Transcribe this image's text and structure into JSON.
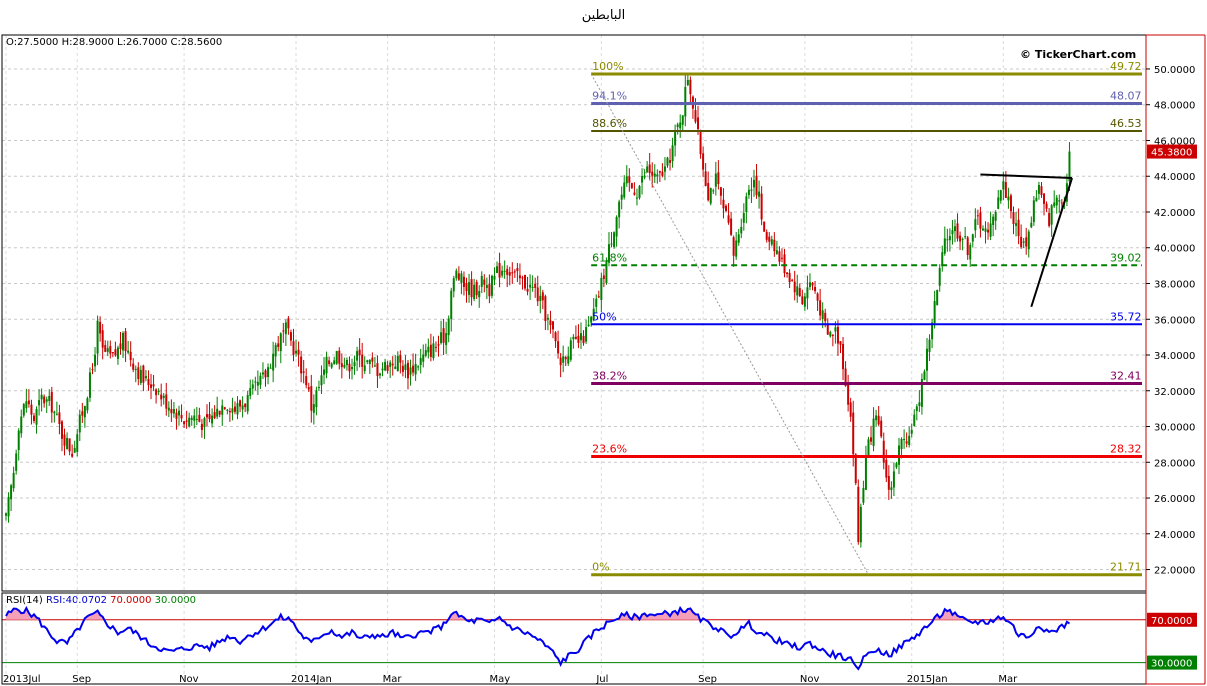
{
  "title": "البابطين",
  "ohlc": {
    "open": "O:27.5000",
    "high": "H:28.9000",
    "low": "L:26.7000",
    "close": "C:28.5600"
  },
  "watermark": "© TickerChart.com",
  "colors": {
    "up": "#008000",
    "down": "#cc0000",
    "panel_border": "#000000",
    "axis_border": "#cc0000"
  },
  "chart_data": [
    {
      "type": "candlestick",
      "title": "البابطين",
      "ylim": [
        20.8,
        51.9
      ],
      "y_ticks": [
        "22.0000",
        "24.0000",
        "26.0000",
        "28.0000",
        "30.0000",
        "32.0000",
        "34.0000",
        "36.0000",
        "38.0000",
        "40.0000",
        "42.0000",
        "44.0000",
        "46.0000",
        "48.0000",
        "50.0000"
      ],
      "x_labels": [
        "2013Jul",
        "Sep",
        "Nov",
        "2014Jan",
        "Mar",
        "May",
        "Jul",
        "Sep",
        "Nov",
        "2015Jan",
        "Mar"
      ],
      "x_label_day": [
        0,
        28,
        70,
        114,
        150,
        192,
        234,
        274,
        314,
        356,
        392
      ],
      "grid": true,
      "last_price": "45.3800",
      "keypoints": [
        [
          0,
          24.8
        ],
        [
          3,
          27.5
        ],
        [
          5,
          30.2
        ],
        [
          8,
          31.5
        ],
        [
          11,
          30.4
        ],
        [
          14,
          31.6
        ],
        [
          18,
          31.2
        ],
        [
          22,
          29.6
        ],
        [
          26,
          28.6
        ],
        [
          30,
          30.8
        ],
        [
          34,
          33.2
        ],
        [
          36,
          35.6
        ],
        [
          38,
          34.2
        ],
        [
          42,
          33.8
        ],
        [
          46,
          34.8
        ],
        [
          50,
          33.6
        ],
        [
          54,
          32.6
        ],
        [
          58,
          32.4
        ],
        [
          62,
          31.5
        ],
        [
          66,
          31.0
        ],
        [
          70,
          30.4
        ],
        [
          74,
          30.6
        ],
        [
          78,
          30.1
        ],
        [
          82,
          30.7
        ],
        [
          86,
          31.4
        ],
        [
          90,
          31.0
        ],
        [
          94,
          31.4
        ],
        [
          98,
          32.1
        ],
        [
          102,
          32.9
        ],
        [
          106,
          34.5
        ],
        [
          110,
          35.4
        ],
        [
          114,
          34.1
        ],
        [
          118,
          32.6
        ],
        [
          120,
          31.1
        ],
        [
          123,
          32.2
        ],
        [
          126,
          33.5
        ],
        [
          130,
          34.1
        ],
        [
          134,
          33.4
        ],
        [
          138,
          33.9
        ],
        [
          142,
          33.6
        ],
        [
          146,
          33.2
        ],
        [
          150,
          33.5
        ],
        [
          154,
          33.7
        ],
        [
          158,
          33.1
        ],
        [
          162,
          33.6
        ],
        [
          166,
          34.2
        ],
        [
          170,
          34.6
        ],
        [
          173,
          35.3
        ],
        [
          175,
          37.6
        ],
        [
          177,
          38.6
        ],
        [
          180,
          37.9
        ],
        [
          184,
          37.6
        ],
        [
          188,
          38.2
        ],
        [
          190,
          37.7
        ],
        [
          193,
          38.6
        ],
        [
          196,
          39.0
        ],
        [
          200,
          38.4
        ],
        [
          204,
          38.0
        ],
        [
          208,
          37.6
        ],
        [
          212,
          36.3
        ],
        [
          215,
          35.1
        ],
        [
          218,
          33.6
        ],
        [
          220,
          34.2
        ],
        [
          223,
          34.6
        ],
        [
          226,
          34.8
        ],
        [
          229,
          35.5
        ],
        [
          232,
          36.8
        ],
        [
          235,
          38.6
        ],
        [
          238,
          40.6
        ],
        [
          241,
          42.6
        ],
        [
          244,
          43.6
        ],
        [
          248,
          43.2
        ],
        [
          252,
          44.4
        ],
        [
          256,
          43.8
        ],
        [
          260,
          44.6
        ],
        [
          263,
          46.2
        ],
        [
          266,
          47.8
        ],
        [
          268,
          49.6
        ],
        [
          270,
          48.1
        ],
        [
          272,
          46.2
        ],
        [
          274,
          44.6
        ],
        [
          276,
          43.1
        ],
        [
          279,
          43.8
        ],
        [
          282,
          42.1
        ],
        [
          284,
          41.2
        ],
        [
          286,
          39.6
        ],
        [
          289,
          41.6
        ],
        [
          292,
          43.4
        ],
        [
          294,
          43.9
        ],
        [
          296,
          42.8
        ],
        [
          298,
          40.6
        ],
        [
          301,
          40.6
        ],
        [
          304,
          39.4
        ],
        [
          307,
          38.7
        ],
        [
          310,
          37.9
        ],
        [
          313,
          37.1
        ],
        [
          316,
          38.1
        ],
        [
          318,
          37.6
        ],
        [
          320,
          36.6
        ],
        [
          323,
          35.1
        ],
        [
          326,
          35.4
        ],
        [
          328,
          34.6
        ],
        [
          330,
          32.6
        ],
        [
          332,
          30.6
        ],
        [
          334,
          26.6
        ],
        [
          335,
          23.6
        ],
        [
          336,
          25.6
        ],
        [
          338,
          28.1
        ],
        [
          340,
          29.6
        ],
        [
          342,
          30.4
        ],
        [
          344,
          29.1
        ],
        [
          346,
          27.1
        ],
        [
          348,
          26.6
        ],
        [
          350,
          28.2
        ],
        [
          352,
          29.1
        ],
        [
          354,
          28.6
        ],
        [
          356,
          30.2
        ],
        [
          358,
          30.8
        ],
        [
          360,
          32.6
        ],
        [
          362,
          34.1
        ],
        [
          364,
          36.0
        ],
        [
          366,
          37.6
        ],
        [
          368,
          39.6
        ],
        [
          370,
          40.6
        ],
        [
          372,
          41.2
        ],
        [
          374,
          40.9
        ],
        [
          376,
          40.6
        ],
        [
          378,
          40.0
        ],
        [
          380,
          40.9
        ],
        [
          382,
          41.6
        ],
        [
          384,
          41.3
        ],
        [
          386,
          40.6
        ],
        [
          388,
          41.6
        ],
        [
          390,
          43.1
        ],
        [
          392,
          43.5
        ],
        [
          394,
          42.8
        ],
        [
          396,
          41.6
        ],
        [
          398,
          40.6
        ],
        [
          400,
          40.1
        ],
        [
          402,
          40.8
        ],
        [
          404,
          42.6
        ],
        [
          406,
          43.4
        ],
        [
          408,
          42.2
        ],
        [
          410,
          41.6
        ],
        [
          412,
          42.6
        ],
        [
          414,
          43.1
        ],
        [
          416,
          42.6
        ],
        [
          418,
          45.38
        ]
      ],
      "fibonacci": {
        "levels": [
          {
            "pct": "100%",
            "value": 49.72,
            "label": "49.72",
            "color": "#8b8b00",
            "style": "solid",
            "width": 3
          },
          {
            "pct": "94.1%",
            "value": 48.07,
            "label": "48.07",
            "color": "#6060b0",
            "style": "solid",
            "width": 3
          },
          {
            "pct": "88.6%",
            "value": 46.53,
            "label": "46.53",
            "color": "#555500",
            "style": "solid",
            "width": 2
          },
          {
            "pct": "61.8%",
            "value": 39.02,
            "label": "39.02",
            "color": "#008000",
            "style": "dash",
            "width": 2
          },
          {
            "pct": "50%",
            "value": 35.72,
            "label": "35.72",
            "color": "#0000ee",
            "style": "solid",
            "width": 2
          },
          {
            "pct": "38.2%",
            "value": 32.41,
            "label": "32.41",
            "color": "#800060",
            "style": "solid",
            "width": 3
          },
          {
            "pct": "23.6%",
            "value": 28.32,
            "label": "28.32",
            "color": "#ee0000",
            "style": "solid",
            "width": 3
          },
          {
            "pct": "0%",
            "value": 21.71,
            "label": "21.71",
            "color": "#8b8b00",
            "style": "solid",
            "width": 3
          }
        ],
        "start_day": 230,
        "end_day": 418
      },
      "trendlines": [
        {
          "day1": 230,
          "price1": 49.72,
          "day2": 339,
          "price2": 21.71,
          "color": "#999999",
          "dash": true
        },
        {
          "day1": 383,
          "price1": 44.1,
          "day2": 419,
          "price2": 43.9,
          "color": "#000000",
          "dash": false
        },
        {
          "day1": 403,
          "price1": 36.7,
          "day2": 419,
          "price2": 43.9,
          "color": "#000000",
          "dash": false
        }
      ]
    },
    {
      "type": "line",
      "name": "RSI(14)",
      "legend": {
        "label": "RSI(14)",
        "value": "RSI:40.0702",
        "upper": "70.0000",
        "lower": "30.0000"
      },
      "ylim": [
        10,
        95
      ],
      "upper": 70,
      "lower": 30,
      "keypoints": [
        [
          0,
          74
        ],
        [
          4,
          80
        ],
        [
          8,
          78
        ],
        [
          12,
          72
        ],
        [
          16,
          60
        ],
        [
          20,
          50
        ],
        [
          24,
          48
        ],
        [
          28,
          60
        ],
        [
          32,
          72
        ],
        [
          36,
          76
        ],
        [
          40,
          66
        ],
        [
          44,
          58
        ],
        [
          48,
          62
        ],
        [
          52,
          56
        ],
        [
          56,
          48
        ],
        [
          60,
          44
        ],
        [
          64,
          40
        ],
        [
          68,
          42
        ],
        [
          72,
          44
        ],
        [
          76,
          46
        ],
        [
          80,
          44
        ],
        [
          84,
          50
        ],
        [
          88,
          55
        ],
        [
          92,
          50
        ],
        [
          96,
          56
        ],
        [
          100,
          60
        ],
        [
          104,
          66
        ],
        [
          108,
          72
        ],
        [
          112,
          70
        ],
        [
          116,
          56
        ],
        [
          120,
          48
        ],
        [
          124,
          56
        ],
        [
          128,
          60
        ],
        [
          132,
          54
        ],
        [
          136,
          58
        ],
        [
          140,
          52
        ],
        [
          144,
          56
        ],
        [
          148,
          54
        ],
        [
          152,
          58
        ],
        [
          156,
          52
        ],
        [
          160,
          56
        ],
        [
          164,
          58
        ],
        [
          168,
          60
        ],
        [
          172,
          65
        ],
        [
          175,
          76
        ],
        [
          178,
          74
        ],
        [
          182,
          68
        ],
        [
          186,
          70
        ],
        [
          190,
          66
        ],
        [
          194,
          72
        ],
        [
          198,
          64
        ],
        [
          202,
          60
        ],
        [
          206,
          56
        ],
        [
          210,
          50
        ],
        [
          214,
          42
        ],
        [
          218,
          30
        ],
        [
          221,
          36
        ],
        [
          224,
          40
        ],
        [
          228,
          50
        ],
        [
          232,
          60
        ],
        [
          236,
          66
        ],
        [
          240,
          72
        ],
        [
          244,
          74
        ],
        [
          248,
          72
        ],
        [
          252,
          76
        ],
        [
          256,
          74
        ],
        [
          260,
          76
        ],
        [
          264,
          78
        ],
        [
          268,
          80
        ],
        [
          272,
          72
        ],
        [
          276,
          66
        ],
        [
          280,
          62
        ],
        [
          284,
          54
        ],
        [
          288,
          60
        ],
        [
          292,
          66
        ],
        [
          296,
          58
        ],
        [
          300,
          54
        ],
        [
          304,
          50
        ],
        [
          308,
          46
        ],
        [
          312,
          44
        ],
        [
          316,
          48
        ],
        [
          320,
          42
        ],
        [
          324,
          38
        ],
        [
          328,
          36
        ],
        [
          332,
          32
        ],
        [
          334,
          24
        ],
        [
          336,
          30
        ],
        [
          340,
          42
        ],
        [
          344,
          40
        ],
        [
          348,
          38
        ],
        [
          352,
          46
        ],
        [
          356,
          52
        ],
        [
          360,
          60
        ],
        [
          364,
          68
        ],
        [
          368,
          76
        ],
        [
          370,
          80
        ],
        [
          374,
          72
        ],
        [
          378,
          68
        ],
        [
          382,
          68
        ],
        [
          386,
          68
        ],
        [
          390,
          72
        ],
        [
          394,
          70
        ],
        [
          398,
          56
        ],
        [
          402,
          54
        ],
        [
          406,
          66
        ],
        [
          410,
          58
        ],
        [
          414,
          62
        ],
        [
          418,
          68
        ]
      ],
      "y_ticks": [
        "70.0000",
        "30.0000"
      ]
    }
  ]
}
